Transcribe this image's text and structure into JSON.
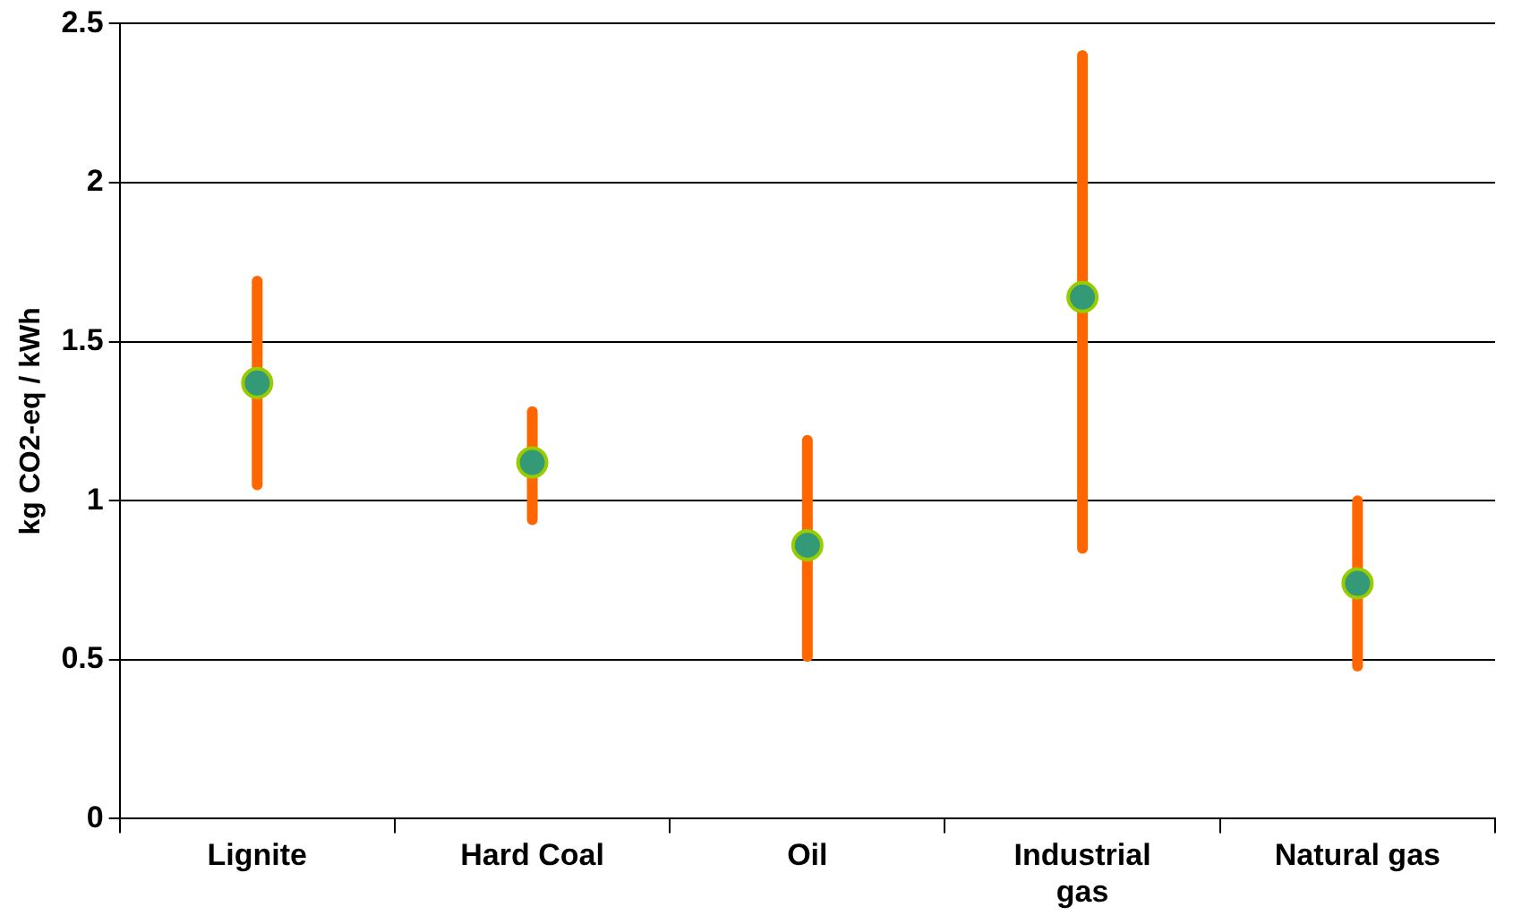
{
  "chart_data": {
    "type": "scatter",
    "ylabel": "kg CO2-eq / kWh",
    "categories": [
      "Lignite",
      "Hard Coal",
      "Oil",
      "Industrial gas",
      "Natural gas"
    ],
    "series": [
      {
        "color": "#339977",
        "values": [
          1.37,
          1.12,
          0.86,
          1.64,
          0.74
        ],
        "errors": [
          [
            1.05,
            1.69
          ],
          [
            0.94,
            1.28
          ],
          [
            0.51,
            1.19
          ],
          [
            0.85,
            2.4
          ],
          [
            0.48,
            1.0
          ]
        ]
      }
    ],
    "ylim": [
      0,
      2.5
    ],
    "yticks": [
      0,
      0.5,
      1,
      1.5,
      2,
      2.5
    ],
    "grid": "y",
    "legend": false,
    "marker": "circle"
  }
}
